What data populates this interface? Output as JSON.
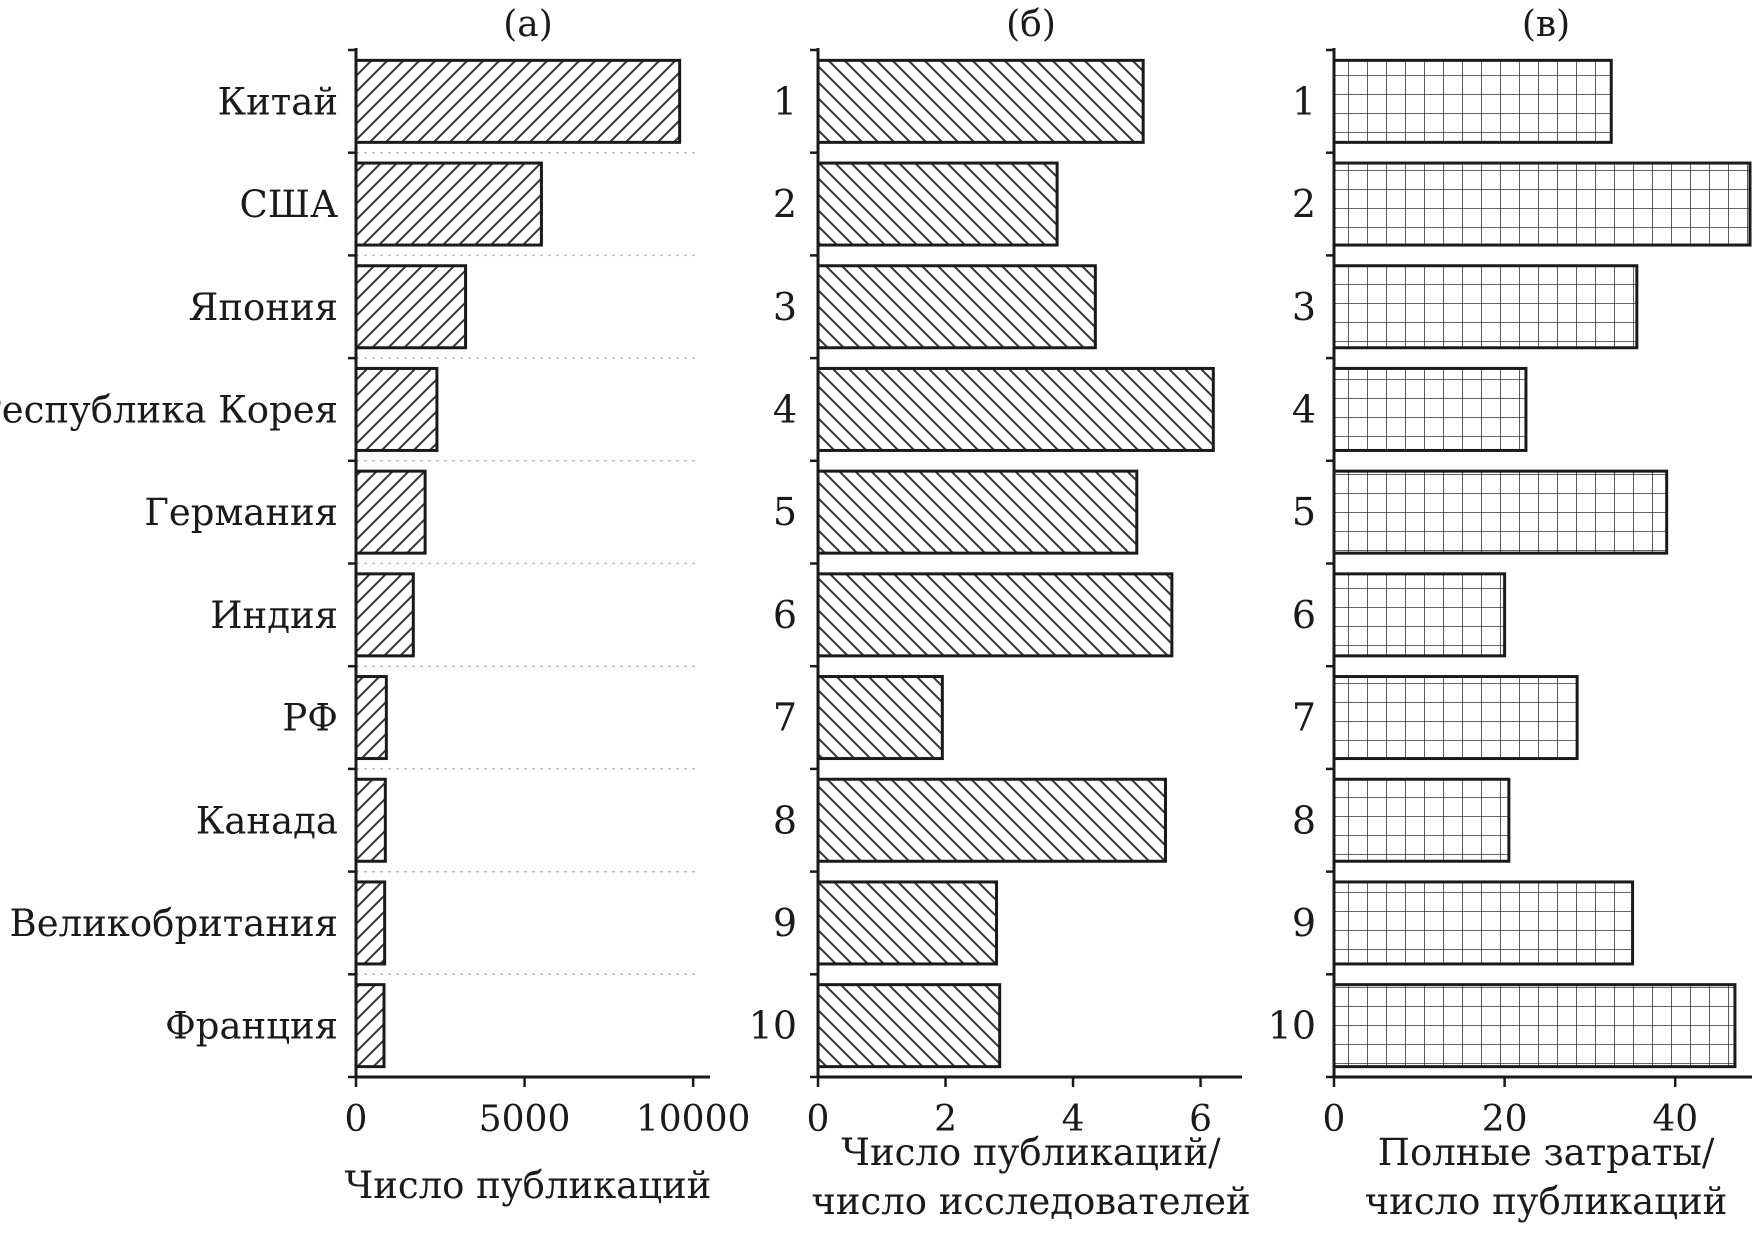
{
  "chart_data": [
    {
      "type": "bar",
      "orientation": "horizontal",
      "title": "(а)",
      "categories": [
        "Китай",
        "США",
        "Япония",
        "Республика Корея",
        "Германия",
        "Индия",
        "РФ",
        "Канада",
        "Великобритания",
        "Франция"
      ],
      "values": [
        9600,
        5500,
        3250,
        2400,
        2050,
        1700,
        900,
        870,
        850,
        830
      ],
      "xlabel": [
        "Число публикаций"
      ],
      "xlim": [
        0,
        10500
      ],
      "xticks": [
        0,
        5000,
        10000
      ],
      "pattern": "hatch-forward",
      "grid": "dotted separators between categories"
    },
    {
      "type": "bar",
      "orientation": "horizontal",
      "title": "(б)",
      "categories": [
        "1",
        "2",
        "3",
        "4",
        "5",
        "6",
        "7",
        "8",
        "9",
        "10"
      ],
      "values": [
        5.1,
        3.75,
        4.35,
        6.2,
        5.0,
        5.55,
        1.95,
        5.45,
        2.8,
        2.85
      ],
      "xlabel": [
        "Число публикаций/",
        "число исследователей"
      ],
      "xlim": [
        0,
        6.65
      ],
      "xticks": [
        0,
        2,
        4,
        6
      ],
      "pattern": "hatch-backward"
    },
    {
      "type": "bar",
      "orientation": "horizontal",
      "title": "(в)",
      "categories": [
        "1",
        "2",
        "3",
        "4",
        "5",
        "6",
        "7",
        "8",
        "9",
        "10"
      ],
      "values": [
        32.5,
        50.5,
        35.5,
        22.5,
        39,
        20,
        28.5,
        20.5,
        35,
        47
      ],
      "xlabel": [
        "Полные затраты/",
        "число публикаций"
      ],
      "xlim": [
        0,
        49
      ],
      "xticks": [
        0,
        20,
        40
      ],
      "pattern": "grid"
    }
  ],
  "colors": {
    "stroke": "#1a1a1a",
    "hatch": "#333333",
    "grid": "#bdbdbd"
  }
}
